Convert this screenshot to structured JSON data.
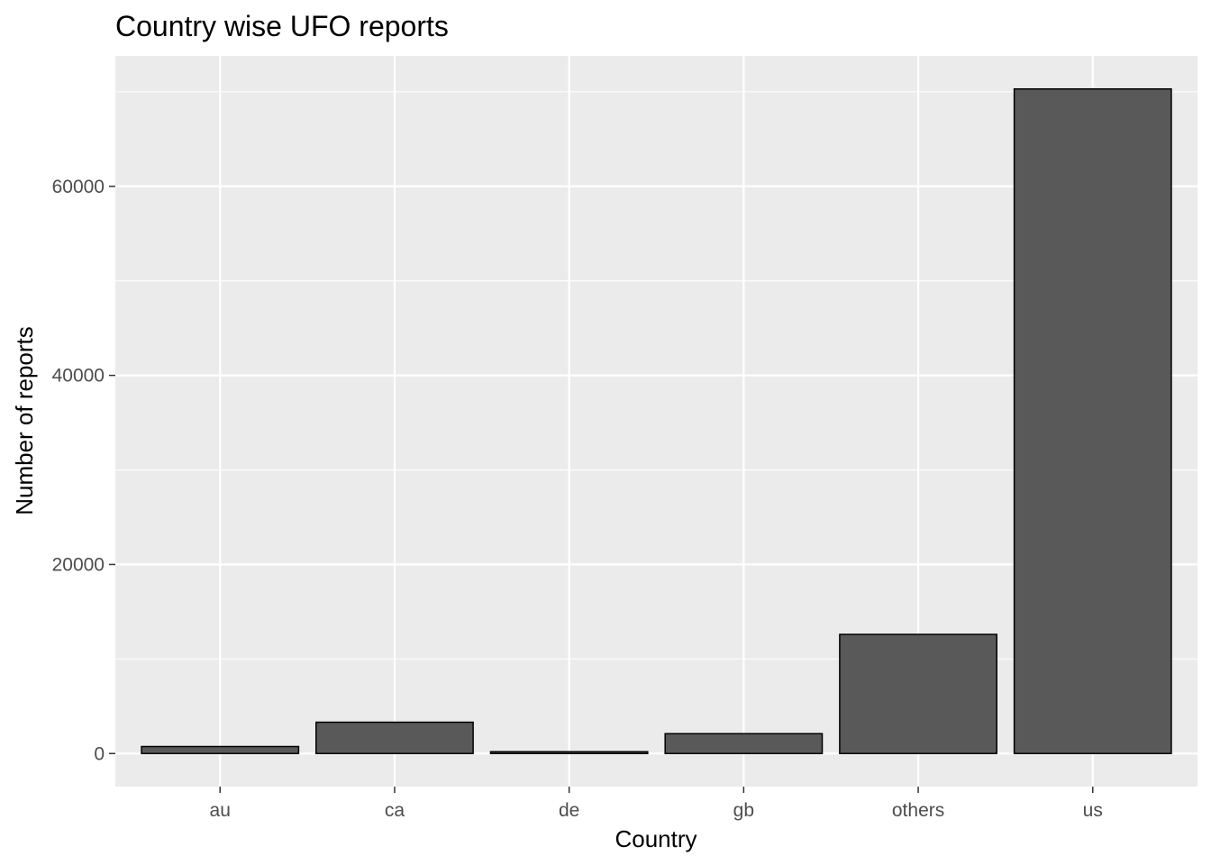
{
  "chart_data": {
    "type": "bar",
    "title": "Country wise UFO reports",
    "xlabel": "Country",
    "ylabel": "Number of reports",
    "categories": [
      "au",
      "ca",
      "de",
      "gb",
      "others",
      "us"
    ],
    "values": [
      740,
      3310,
      190,
      2100,
      12600,
      70300
    ],
    "ylim": [
      -3500,
      73800
    ],
    "yticks": [
      0,
      20000,
      40000,
      60000
    ],
    "ytick_labels": [
      "0",
      "20000",
      "40000",
      "60000"
    ],
    "grid": true,
    "legend": "none",
    "colors": {
      "panel_background": "#ebebeb",
      "grid": "#ffffff",
      "bar_fill": "#595959",
      "bar_outline": "#000000",
      "tick_text": "#4d4d4d"
    }
  }
}
